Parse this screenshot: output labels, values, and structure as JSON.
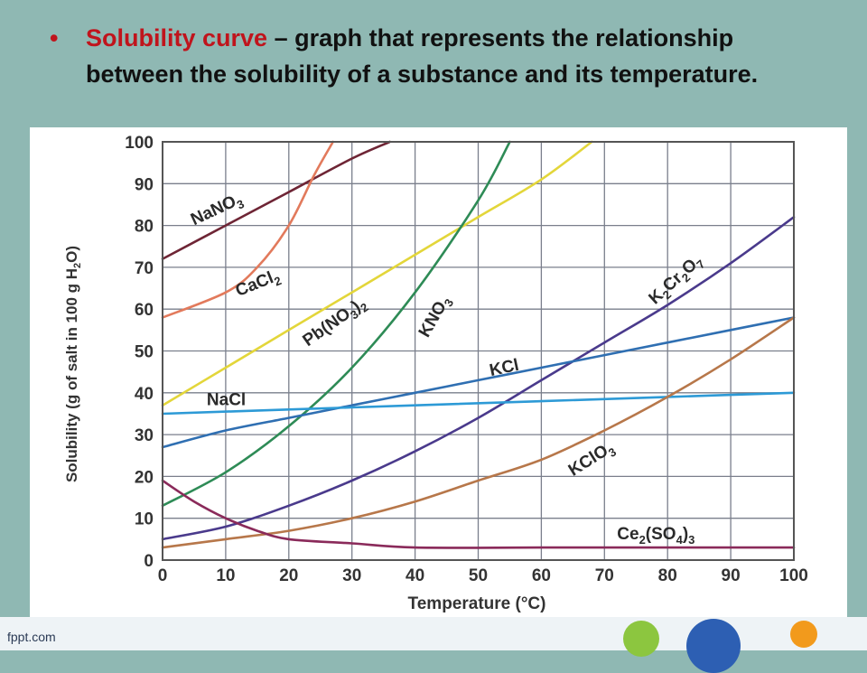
{
  "slide": {
    "bullet_symbol": "•",
    "term": "Solubility curve",
    "definition": " – graph that represents the relationship between the solubility of a substance and its temperature.",
    "accent_color": "#c0141c",
    "background_color": "#8fb8b3"
  },
  "footer": {
    "brand": "fppt.com"
  },
  "chart_data": {
    "type": "line",
    "title": "",
    "xlabel": "Temperature (°C)",
    "ylabel": "Solubility (g of salt in 100 g H2O)",
    "xlim": [
      0,
      100
    ],
    "ylim": [
      0,
      100
    ],
    "x_ticks": [
      0,
      10,
      20,
      30,
      40,
      50,
      60,
      70,
      80,
      90,
      100
    ],
    "y_ticks": [
      0,
      10,
      20,
      30,
      40,
      50,
      60,
      70,
      80,
      90,
      100
    ],
    "grid": true,
    "legend": "none (labels placed on curves)",
    "series": [
      {
        "name": "NaNO3",
        "label_parts": [
          [
            "NaNO",
            ""
          ],
          [
            "3",
            "sub"
          ]
        ],
        "color": "#6e2535",
        "points": [
          [
            0,
            72
          ],
          [
            10,
            80
          ],
          [
            20,
            88
          ],
          [
            30,
            96
          ],
          [
            36,
            100
          ]
        ]
      },
      {
        "name": "CaCl2",
        "label_parts": [
          [
            "CaCl",
            ""
          ],
          [
            "2",
            "sub"
          ]
        ],
        "color": "#e27a5c",
        "points": [
          [
            0,
            58
          ],
          [
            10,
            64
          ],
          [
            15,
            70
          ],
          [
            20,
            80
          ],
          [
            24,
            92
          ],
          [
            27,
            100
          ]
        ]
      },
      {
        "name": "Pb(NO3)2",
        "label_parts": [
          [
            "Pb(NO",
            ""
          ],
          [
            "3",
            "sub"
          ],
          [
            ")",
            ""
          ],
          [
            "2",
            "sub"
          ]
        ],
        "color": "#e3d63a",
        "points": [
          [
            0,
            37
          ],
          [
            10,
            46
          ],
          [
            20,
            55
          ],
          [
            30,
            64
          ],
          [
            40,
            73
          ],
          [
            50,
            82
          ],
          [
            60,
            91
          ],
          [
            68,
            100
          ]
        ]
      },
      {
        "name": "KNO3",
        "label_parts": [
          [
            "KNO",
            ""
          ],
          [
            "3",
            "sub"
          ]
        ],
        "color": "#2e8b56",
        "points": [
          [
            0,
            13
          ],
          [
            10,
            21
          ],
          [
            20,
            32
          ],
          [
            30,
            46
          ],
          [
            40,
            64
          ],
          [
            50,
            86
          ],
          [
            55,
            100
          ]
        ]
      },
      {
        "name": "K2Cr2O7",
        "label_parts": [
          [
            "K",
            ""
          ],
          [
            "2",
            "sub"
          ],
          [
            "Cr",
            ""
          ],
          [
            "2",
            "sub"
          ],
          [
            "O",
            ""
          ],
          [
            "7",
            "sub"
          ]
        ],
        "color": "#4a3a8c",
        "points": [
          [
            0,
            5
          ],
          [
            10,
            8
          ],
          [
            20,
            13
          ],
          [
            30,
            19
          ],
          [
            40,
            26
          ],
          [
            50,
            34
          ],
          [
            60,
            43
          ],
          [
            70,
            52
          ],
          [
            80,
            61
          ],
          [
            90,
            71
          ],
          [
            100,
            82
          ]
        ]
      },
      {
        "name": "KCl",
        "label_parts": [
          [
            "KCl",
            ""
          ]
        ],
        "color": "#2f6fb2",
        "points": [
          [
            0,
            27
          ],
          [
            10,
            31
          ],
          [
            20,
            34
          ],
          [
            30,
            37
          ],
          [
            40,
            40
          ],
          [
            50,
            43
          ],
          [
            60,
            46
          ],
          [
            70,
            49
          ],
          [
            80,
            52
          ],
          [
            90,
            55
          ],
          [
            100,
            58
          ]
        ]
      },
      {
        "name": "NaCl",
        "label_parts": [
          [
            "NaCl",
            ""
          ]
        ],
        "color": "#2d9ad6",
        "points": [
          [
            0,
            35
          ],
          [
            20,
            36
          ],
          [
            40,
            37
          ],
          [
            60,
            38
          ],
          [
            80,
            39
          ],
          [
            100,
            40
          ]
        ]
      },
      {
        "name": "KClO3",
        "label_parts": [
          [
            "KClO",
            ""
          ],
          [
            "3",
            "sub"
          ]
        ],
        "color": "#b7774a",
        "points": [
          [
            0,
            3
          ],
          [
            10,
            5
          ],
          [
            20,
            7
          ],
          [
            30,
            10
          ],
          [
            40,
            14
          ],
          [
            50,
            19
          ],
          [
            60,
            24
          ],
          [
            70,
            31
          ],
          [
            80,
            39
          ],
          [
            90,
            48
          ],
          [
            100,
            58
          ]
        ]
      },
      {
        "name": "Ce2(SO4)3",
        "label_parts": [
          [
            "Ce",
            ""
          ],
          [
            "2",
            "sub"
          ],
          [
            "(SO",
            ""
          ],
          [
            "4",
            "sub"
          ],
          [
            ")",
            ""
          ],
          [
            "3",
            "sub"
          ]
        ],
        "color": "#8a2a5a",
        "points": [
          [
            0,
            19
          ],
          [
            5,
            14
          ],
          [
            10,
            10
          ],
          [
            15,
            7
          ],
          [
            20,
            5
          ],
          [
            30,
            4
          ],
          [
            40,
            3
          ],
          [
            60,
            3
          ],
          [
            80,
            3
          ],
          [
            100,
            3
          ]
        ]
      }
    ]
  }
}
